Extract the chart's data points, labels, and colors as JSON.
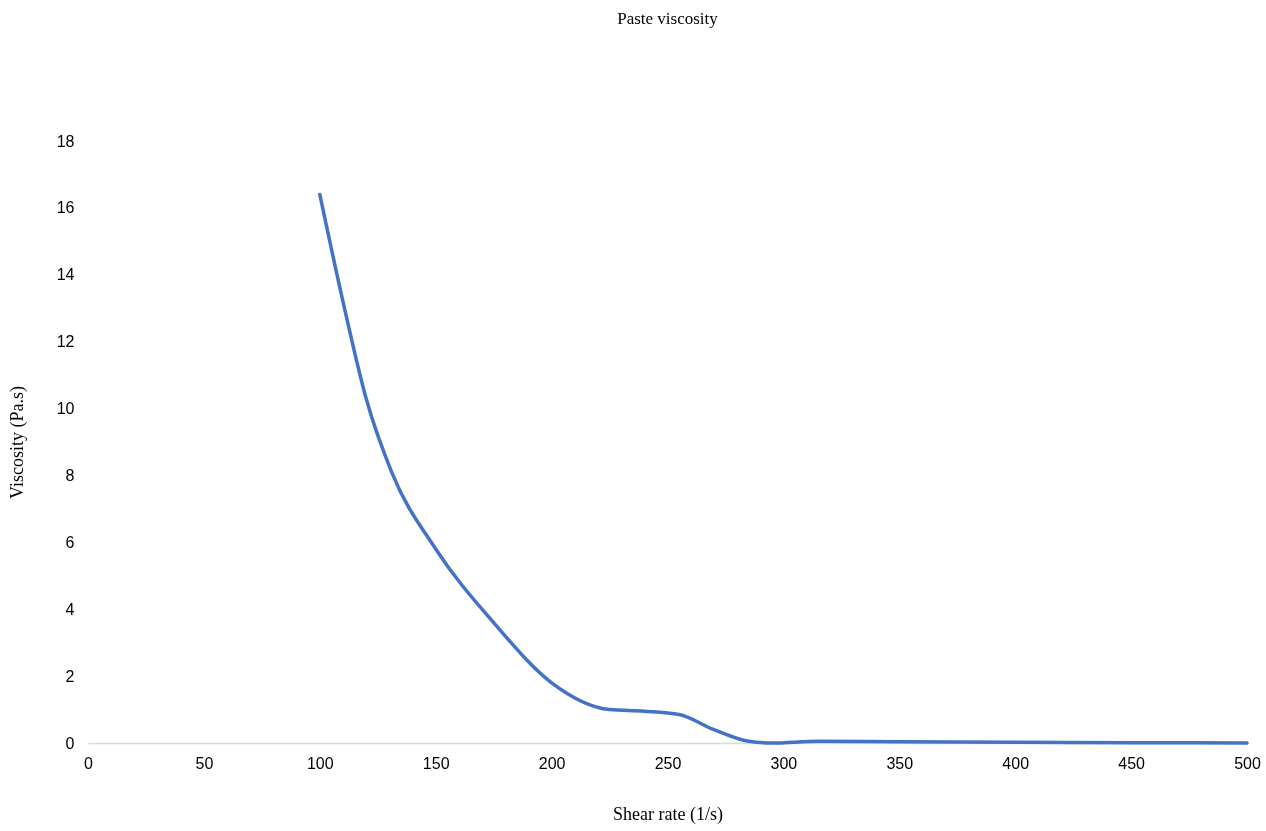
{
  "chart_data": {
    "type": "line",
    "title": "Paste viscosity",
    "xlabel": "Shear rate (1/s)",
    "ylabel": "Viscosity (Pa.s)",
    "x": [
      100,
      110,
      120,
      131,
      150,
      175,
      200,
      225,
      240,
      255,
      270,
      285,
      295,
      315,
      350,
      400,
      450,
      500
    ],
    "series": [
      {
        "color": "#4472c4",
        "values": [
          16.4,
          13.2,
          10.3,
          8.1,
          5.8,
          3.6,
          1.8,
          1.0,
          0.95,
          0.85,
          0.4,
          0.05,
          0,
          0.05,
          0.04,
          0.02,
          0.01,
          0
        ]
      }
    ],
    "xlim": [
      0,
      500
    ],
    "xticks": [
      0,
      50,
      100,
      150,
      200,
      250,
      300,
      350,
      400,
      450,
      500
    ],
    "ylim": [
      0,
      18
    ],
    "yticks": [
      0,
      2,
      4,
      6,
      8,
      10,
      12,
      14,
      16,
      18
    ],
    "grid": false,
    "legend": false,
    "marker": "none",
    "line_style": "solid"
  }
}
